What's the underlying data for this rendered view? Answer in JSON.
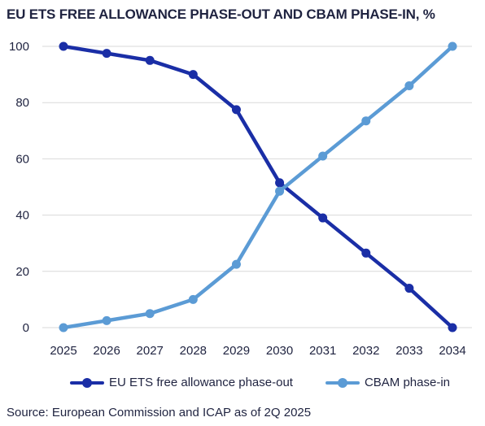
{
  "title": "EU ETS FREE ALLOWANCE PHASE-OUT AND CBAM PHASE-IN, %",
  "source": "Source: European Commission and ICAP as of 2Q 2025",
  "colors": {
    "series1": "#1a2ea6",
    "series2": "#5b9bd5",
    "grid": "#d9d9d9",
    "text": "#1f2340"
  },
  "chart_data": {
    "type": "line",
    "title": "EU ETS FREE ALLOWANCE PHASE-OUT AND CBAM PHASE-IN, %",
    "xlabel": "",
    "ylabel": "",
    "categories": [
      "2025",
      "2026",
      "2027",
      "2028",
      "2029",
      "2030",
      "2031",
      "2032",
      "2033",
      "2034"
    ],
    "ylim": [
      0,
      100
    ],
    "yticks": [
      0,
      20,
      40,
      60,
      80,
      100
    ],
    "grid": "horizontal",
    "legend": "bottom",
    "series": [
      {
        "name": "EU ETS free allowance phase-out",
        "color": "#1a2ea6",
        "values": [
          100,
          97.5,
          95,
          90,
          77.5,
          51.5,
          39,
          26.5,
          14,
          0
        ]
      },
      {
        "name": "CBAM phase-in",
        "color": "#5b9bd5",
        "values": [
          0,
          2.5,
          5,
          10,
          22.5,
          48.5,
          61,
          73.5,
          86,
          100
        ]
      }
    ]
  }
}
